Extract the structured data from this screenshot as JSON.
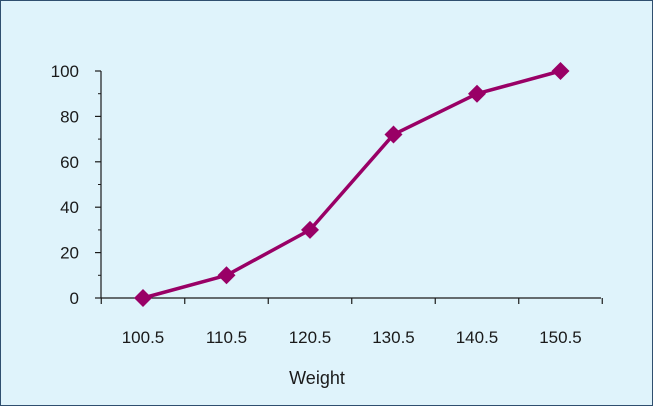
{
  "chart_data": {
    "type": "line",
    "title": "",
    "xlabel": "Weight",
    "ylabel": "",
    "x": [
      "100.5",
      "110.5",
      "120.5",
      "130.5",
      "140.5",
      "150.5"
    ],
    "series": [
      {
        "values": [
          0,
          10,
          30,
          72,
          90,
          100
        ]
      }
    ],
    "ylim": [
      0,
      100
    ],
    "yticks": [
      "0",
      "20",
      "40",
      "60",
      "80",
      "100"
    ],
    "grid": false,
    "legend": "none",
    "marker": "diamond",
    "colors": {
      "background": "#dff3fb",
      "series": "#990066",
      "axis": "#1a1a1a",
      "border": "#2f4f6f"
    }
  }
}
